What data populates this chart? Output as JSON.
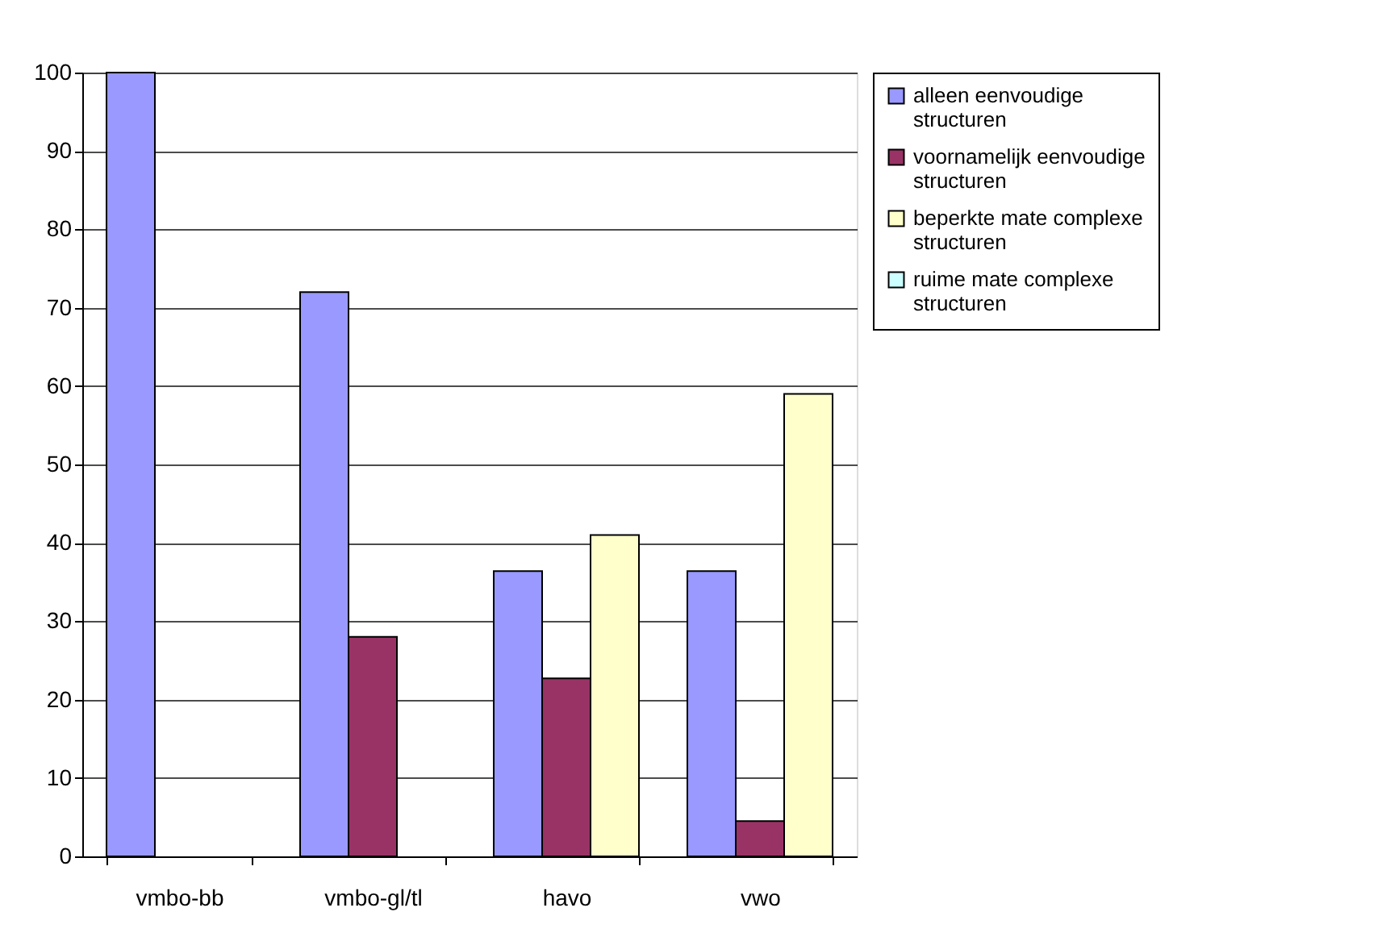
{
  "chart_data": {
    "type": "bar",
    "categories": [
      "vmbo-bb",
      "vmbo-gl/tl",
      "havo",
      "vwo"
    ],
    "series": [
      {
        "name": "alleen eenvoudige structuren",
        "color": "#9999ff",
        "values": [
          100,
          72,
          36.4,
          36.4
        ]
      },
      {
        "name": "voornamelijk eenvoudige structuren",
        "color": "#993366",
        "values": [
          null,
          28,
          22.7,
          4.5
        ]
      },
      {
        "name": "beperkte mate complexe structuren",
        "color": "#ffffcc",
        "values": [
          null,
          null,
          41,
          59
        ]
      },
      {
        "name": "ruime mate complexe structuren",
        "color": "#ccffff",
        "values": [
          null,
          null,
          null,
          null
        ]
      }
    ],
    "ylim": [
      0,
      100
    ],
    "yticks": [
      0,
      10,
      20,
      30,
      40,
      50,
      60,
      70,
      80,
      90,
      100
    ],
    "grid": "y",
    "legend": "right"
  }
}
